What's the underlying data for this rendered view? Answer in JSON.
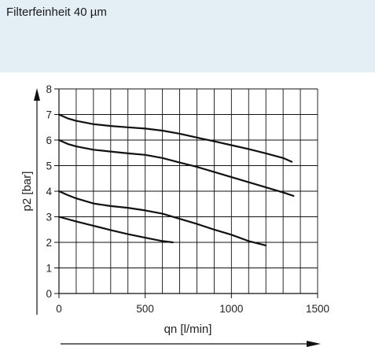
{
  "header": {
    "title": "Filterfeinheit 40 µm",
    "background": "#e4eef5"
  },
  "chart_data": {
    "type": "line",
    "xlabel": "qn [l/min]",
    "ylabel": "p2 [bar]",
    "xlim": [
      0,
      1500
    ],
    "ylim": [
      0,
      8
    ],
    "grid": true,
    "x_ticks": [
      "0",
      "500",
      "1000",
      "1500"
    ],
    "y_ticks": [
      "0",
      "1",
      "2",
      "3",
      "4",
      "5",
      "6",
      "7",
      "8"
    ],
    "series": [
      {
        "points": [
          [
            0,
            7.0
          ],
          [
            50,
            6.85
          ],
          [
            100,
            6.75
          ],
          [
            200,
            6.62
          ],
          [
            300,
            6.55
          ],
          [
            400,
            6.5
          ],
          [
            500,
            6.45
          ],
          [
            600,
            6.37
          ],
          [
            700,
            6.25
          ],
          [
            800,
            6.1
          ],
          [
            900,
            5.95
          ],
          [
            1000,
            5.8
          ],
          [
            1100,
            5.65
          ],
          [
            1200,
            5.48
          ],
          [
            1300,
            5.3
          ],
          [
            1350,
            5.15
          ]
        ]
      },
      {
        "points": [
          [
            0,
            6.0
          ],
          [
            50,
            5.85
          ],
          [
            100,
            5.75
          ],
          [
            200,
            5.62
          ],
          [
            300,
            5.55
          ],
          [
            400,
            5.48
          ],
          [
            500,
            5.42
          ],
          [
            600,
            5.3
          ],
          [
            700,
            5.12
          ],
          [
            800,
            4.95
          ],
          [
            900,
            4.75
          ],
          [
            1000,
            4.55
          ],
          [
            1100,
            4.35
          ],
          [
            1200,
            4.15
          ],
          [
            1300,
            3.95
          ],
          [
            1360,
            3.82
          ]
        ]
      },
      {
        "points": [
          [
            0,
            4.0
          ],
          [
            50,
            3.85
          ],
          [
            100,
            3.72
          ],
          [
            200,
            3.52
          ],
          [
            300,
            3.42
          ],
          [
            400,
            3.35
          ],
          [
            500,
            3.25
          ],
          [
            600,
            3.12
          ],
          [
            700,
            2.92
          ],
          [
            800,
            2.72
          ],
          [
            900,
            2.5
          ],
          [
            1000,
            2.3
          ],
          [
            1100,
            2.05
          ],
          [
            1200,
            1.88
          ]
        ]
      },
      {
        "points": [
          [
            0,
            3.0
          ],
          [
            100,
            2.82
          ],
          [
            200,
            2.65
          ],
          [
            300,
            2.48
          ],
          [
            400,
            2.32
          ],
          [
            500,
            2.18
          ],
          [
            600,
            2.05
          ],
          [
            660,
            2.0
          ]
        ]
      }
    ],
    "line_color": "#111111",
    "grid_color": "#111111"
  }
}
